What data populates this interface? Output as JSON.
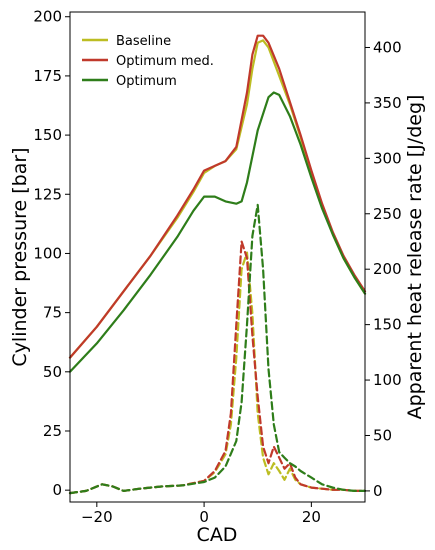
{
  "chart_data": {
    "type": "line",
    "xlabel": "CAD",
    "ylabel_left": "Cylinder pressure [bar]",
    "ylabel_right": "Apparent heat release rate [J/deg]",
    "xlim": [
      -25,
      30
    ],
    "ylim_left": [
      -5,
      202
    ],
    "ylim_right": [
      -10,
      432
    ],
    "xticks": [
      -20,
      0,
      20
    ],
    "yticks_left": [
      0,
      25,
      50,
      75,
      100,
      125,
      150,
      175,
      200
    ],
    "yticks_right": [
      0,
      50,
      100,
      150,
      200,
      250,
      300,
      350,
      400
    ],
    "grid": false,
    "legend_position": "top-left",
    "series": [
      {
        "name": "Baseline",
        "color": "#bcbd22",
        "axis": "left",
        "style": "solid",
        "x": [
          -25,
          -20,
          -15,
          -10,
          -5,
          -2,
          0,
          2,
          4,
          6,
          8,
          9,
          10,
          11,
          12,
          14,
          16,
          18,
          20,
          22,
          24,
          26,
          28,
          30
        ],
        "y": [
          56,
          69,
          84,
          99,
          115,
          126,
          134,
          137,
          139,
          144,
          163,
          178,
          189,
          190,
          187,
          175,
          163,
          149,
          134,
          120,
          108,
          98,
          90,
          83
        ]
      },
      {
        "name": "Optimum med.",
        "color": "#c0392b",
        "axis": "left",
        "style": "solid",
        "x": [
          -25,
          -20,
          -15,
          -10,
          -5,
          -2,
          0,
          2,
          4,
          6,
          8,
          9,
          10,
          11,
          12,
          14,
          16,
          18,
          20,
          22,
          24,
          26,
          28,
          30
        ],
        "y": [
          56,
          69,
          84,
          99,
          116,
          127,
          135,
          137,
          139,
          145,
          168,
          184,
          192,
          192,
          189,
          178,
          164,
          150,
          135,
          121,
          109,
          99,
          91,
          84
        ]
      },
      {
        "name": "Optimum",
        "color": "#2e7d1a",
        "axis": "left",
        "style": "solid",
        "x": [
          -25,
          -20,
          -15,
          -10,
          -5,
          -2,
          0,
          2,
          4,
          6,
          7,
          8,
          10,
          12,
          13,
          14,
          16,
          18,
          20,
          22,
          24,
          26,
          28,
          30
        ],
        "y": [
          50,
          62,
          76,
          91,
          107,
          118,
          124,
          124,
          122,
          121,
          122,
          130,
          152,
          166,
          168,
          167,
          158,
          146,
          132,
          119,
          108,
          98,
          90,
          83
        ]
      },
      {
        "name": "",
        "color": "#bcbd22",
        "axis": "right",
        "style": "dashed",
        "x": [
          -25,
          -22,
          -19,
          -17,
          -15,
          -12,
          -8,
          -4,
          0,
          2,
          4,
          5,
          6,
          7,
          8,
          9,
          10,
          11,
          12,
          13,
          14,
          15,
          16,
          17,
          18,
          20,
          22,
          24,
          26,
          28,
          30
        ],
        "y": [
          -2,
          0,
          6,
          4,
          0,
          2,
          4,
          5,
          9,
          17,
          33,
          60,
          120,
          200,
          215,
          160,
          70,
          30,
          15,
          25,
          18,
          10,
          20,
          10,
          6,
          3,
          2,
          1,
          1,
          0,
          0
        ]
      },
      {
        "name": "",
        "color": "#c0392b",
        "axis": "right",
        "style": "dashed",
        "x": [
          -25,
          -22,
          -19,
          -17,
          -15,
          -12,
          -8,
          -4,
          0,
          2,
          4,
          5,
          6,
          7,
          8,
          9,
          10,
          11,
          12,
          13,
          14,
          15,
          16,
          17,
          18,
          20,
          22,
          24,
          26,
          28,
          30
        ],
        "y": [
          -2,
          0,
          6,
          4,
          0,
          2,
          4,
          5,
          9,
          18,
          36,
          70,
          150,
          225,
          210,
          140,
          85,
          40,
          25,
          40,
          30,
          20,
          25,
          12,
          6,
          3,
          2,
          1,
          1,
          0,
          0
        ]
      },
      {
        "name": "",
        "color": "#2e7d1a",
        "axis": "right",
        "style": "dashed",
        "x": [
          -25,
          -22,
          -19,
          -17,
          -15,
          -12,
          -8,
          -4,
          0,
          2,
          4,
          6,
          7,
          8,
          9,
          10,
          11,
          12,
          13,
          14,
          15,
          16,
          17,
          18,
          20,
          22,
          24,
          26,
          28,
          30
        ],
        "y": [
          -2,
          0,
          6,
          4,
          0,
          2,
          4,
          5,
          8,
          12,
          22,
          45,
          80,
          150,
          230,
          258,
          200,
          110,
          60,
          35,
          30,
          25,
          22,
          18,
          12,
          6,
          3,
          1,
          0,
          0
        ]
      }
    ]
  }
}
